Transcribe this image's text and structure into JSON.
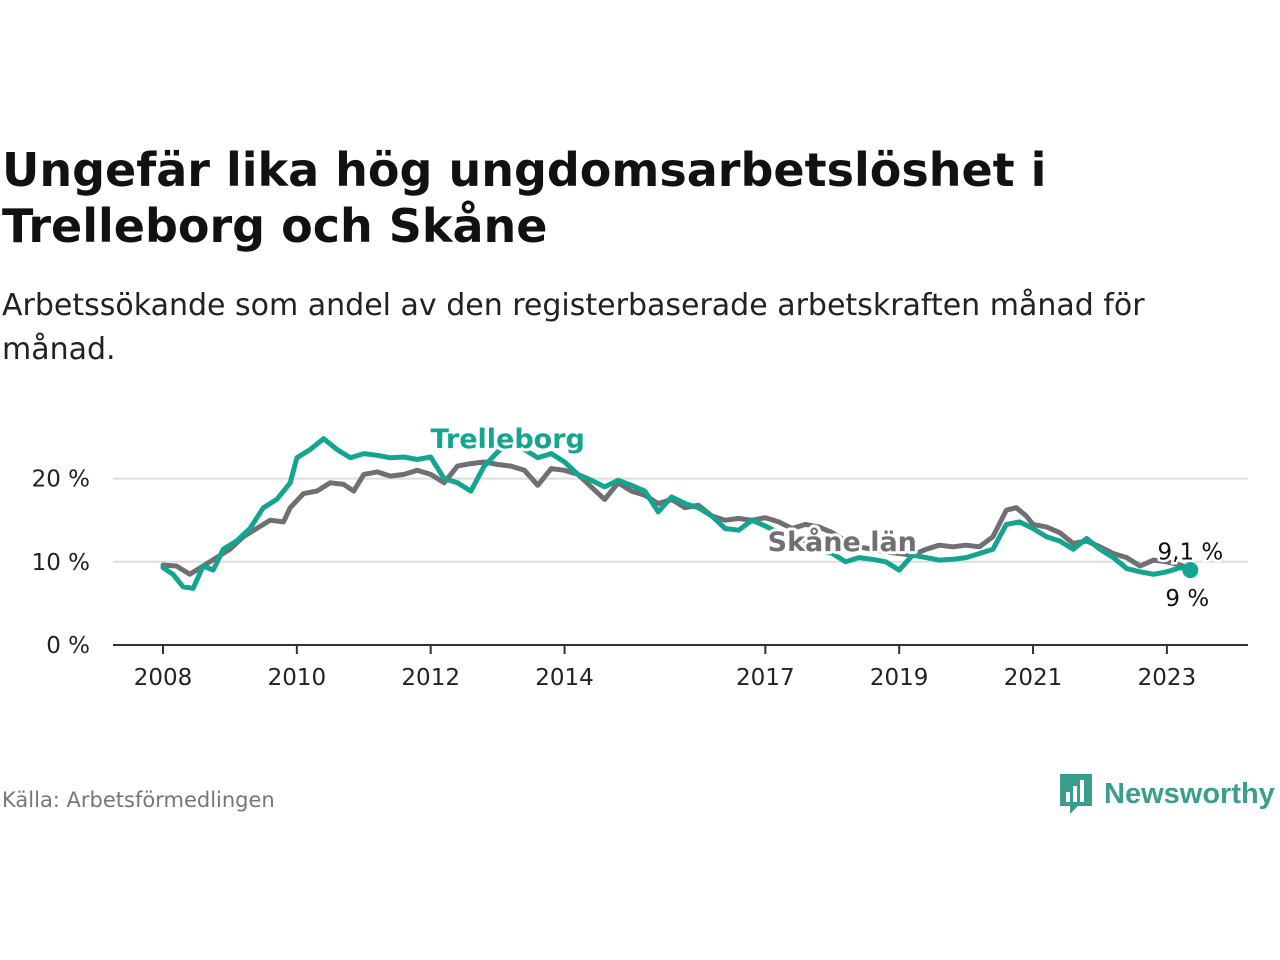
{
  "title": "Ungefär lika hög ungdomsarbetslöshet i Trelleborg och Skåne",
  "subtitle": "Arbetssökande som andel av den registerbaserade arbetskraften månad för månad.",
  "source": "Källa: Arbetsförmedlingen",
  "brand": "Newsworthy",
  "colors": {
    "trelleborg": "#13a58f",
    "skane": "#6f6f74",
    "grid": "#dddddd",
    "axis": "#333333",
    "brand": "#3b9e8c"
  },
  "chart_data": {
    "type": "line",
    "title": "Ungefär lika hög ungdomsarbetslöshet i Trelleborg och Skåne",
    "xlabel": "",
    "ylabel": "",
    "xlim": [
      2008.0,
      2023.45
    ],
    "ylim": [
      0,
      25
    ],
    "y_ticks": [
      {
        "value": 0,
        "label": "0 %"
      },
      {
        "value": 10,
        "label": "10 %"
      },
      {
        "value": 20,
        "label": "20 %"
      }
    ],
    "x_ticks": [
      {
        "value": 2008,
        "label": "2008"
      },
      {
        "value": 2010,
        "label": "2010"
      },
      {
        "value": 2012,
        "label": "2012"
      },
      {
        "value": 2014,
        "label": "2014"
      },
      {
        "value": 2017,
        "label": "2017"
      },
      {
        "value": 2019,
        "label": "2019"
      },
      {
        "value": 2021,
        "label": "2021"
      },
      {
        "value": 2023,
        "label": "2023"
      }
    ],
    "series": [
      {
        "name": "Skåne län",
        "label": "Skåne län",
        "end_label": "9,1 %",
        "color": "#6f6f74",
        "points": [
          [
            2008.0,
            9.6
          ],
          [
            2008.2,
            9.5
          ],
          [
            2008.4,
            8.5
          ],
          [
            2008.6,
            9.5
          ],
          [
            2008.8,
            10.5
          ],
          [
            2009.0,
            11.5
          ],
          [
            2009.2,
            13.0
          ],
          [
            2009.4,
            14.0
          ],
          [
            2009.6,
            15.0
          ],
          [
            2009.8,
            14.8
          ],
          [
            2009.9,
            16.5
          ],
          [
            2010.1,
            18.2
          ],
          [
            2010.3,
            18.5
          ],
          [
            2010.5,
            19.5
          ],
          [
            2010.7,
            19.3
          ],
          [
            2010.85,
            18.5
          ],
          [
            2011.0,
            20.5
          ],
          [
            2011.2,
            20.8
          ],
          [
            2011.4,
            20.3
          ],
          [
            2011.6,
            20.5
          ],
          [
            2011.8,
            21.0
          ],
          [
            2012.0,
            20.5
          ],
          [
            2012.2,
            19.5
          ],
          [
            2012.4,
            21.5
          ],
          [
            2012.6,
            21.8
          ],
          [
            2012.8,
            22.0
          ],
          [
            2013.0,
            21.7
          ],
          [
            2013.2,
            21.5
          ],
          [
            2013.4,
            21.0
          ],
          [
            2013.6,
            19.2
          ],
          [
            2013.8,
            21.2
          ],
          [
            2014.0,
            21.0
          ],
          [
            2014.2,
            20.5
          ],
          [
            2014.4,
            19.0
          ],
          [
            2014.6,
            17.5
          ],
          [
            2014.8,
            19.5
          ],
          [
            2015.0,
            18.5
          ],
          [
            2015.2,
            18.0
          ],
          [
            2015.4,
            17.0
          ],
          [
            2015.6,
            17.5
          ],
          [
            2015.8,
            16.5
          ],
          [
            2016.0,
            16.8
          ],
          [
            2016.2,
            15.5
          ],
          [
            2016.4,
            15.0
          ],
          [
            2016.6,
            15.2
          ],
          [
            2016.8,
            15.0
          ],
          [
            2017.0,
            15.3
          ],
          [
            2017.2,
            14.8
          ],
          [
            2017.4,
            14.0
          ],
          [
            2017.6,
            14.5
          ],
          [
            2017.8,
            14.2
          ],
          [
            2018.0,
            13.5
          ],
          [
            2018.2,
            12.5
          ],
          [
            2018.4,
            11.8
          ],
          [
            2018.6,
            11.5
          ],
          [
            2018.8,
            11.2
          ],
          [
            2019.0,
            11.0
          ],
          [
            2019.2,
            10.8
          ],
          [
            2019.4,
            11.5
          ],
          [
            2019.6,
            12.0
          ],
          [
            2019.8,
            11.8
          ],
          [
            2020.0,
            12.0
          ],
          [
            2020.2,
            11.8
          ],
          [
            2020.4,
            13.0
          ],
          [
            2020.6,
            16.2
          ],
          [
            2020.75,
            16.5
          ],
          [
            2020.9,
            15.5
          ],
          [
            2021.0,
            14.5
          ],
          [
            2021.2,
            14.2
          ],
          [
            2021.4,
            13.5
          ],
          [
            2021.6,
            12.2
          ],
          [
            2021.8,
            12.5
          ],
          [
            2022.0,
            11.8
          ],
          [
            2022.2,
            11.0
          ],
          [
            2022.4,
            10.5
          ],
          [
            2022.6,
            9.5
          ],
          [
            2022.8,
            10.2
          ],
          [
            2023.0,
            10.0
          ],
          [
            2023.2,
            9.6
          ],
          [
            2023.35,
            9.1
          ]
        ]
      },
      {
        "name": "Trelleborg",
        "label": "Trelleborg",
        "end_label": "9 %",
        "color": "#13a58f",
        "points": [
          [
            2008.0,
            9.3
          ],
          [
            2008.15,
            8.5
          ],
          [
            2008.3,
            7.0
          ],
          [
            2008.45,
            6.8
          ],
          [
            2008.6,
            9.5
          ],
          [
            2008.75,
            9.0
          ],
          [
            2008.9,
            11.5
          ],
          [
            2009.1,
            12.5
          ],
          [
            2009.3,
            14.0
          ],
          [
            2009.5,
            16.5
          ],
          [
            2009.7,
            17.5
          ],
          [
            2009.9,
            19.5
          ],
          [
            2010.0,
            22.5
          ],
          [
            2010.2,
            23.5
          ],
          [
            2010.4,
            24.8
          ],
          [
            2010.6,
            23.5
          ],
          [
            2010.8,
            22.5
          ],
          [
            2011.0,
            23.0
          ],
          [
            2011.2,
            22.8
          ],
          [
            2011.4,
            22.5
          ],
          [
            2011.6,
            22.6
          ],
          [
            2011.8,
            22.3
          ],
          [
            2012.0,
            22.6
          ],
          [
            2012.2,
            20.0
          ],
          [
            2012.4,
            19.5
          ],
          [
            2012.6,
            18.5
          ],
          [
            2012.8,
            21.5
          ],
          [
            2013.0,
            23.2
          ],
          [
            2013.2,
            24.5
          ],
          [
            2013.4,
            23.5
          ],
          [
            2013.6,
            22.5
          ],
          [
            2013.8,
            23.0
          ],
          [
            2014.0,
            22.0
          ],
          [
            2014.2,
            20.5
          ],
          [
            2014.4,
            19.8
          ],
          [
            2014.6,
            19.0
          ],
          [
            2014.8,
            19.8
          ],
          [
            2015.0,
            19.2
          ],
          [
            2015.2,
            18.5
          ],
          [
            2015.4,
            16.0
          ],
          [
            2015.6,
            17.8
          ],
          [
            2015.8,
            17.0
          ],
          [
            2016.0,
            16.5
          ],
          [
            2016.2,
            15.5
          ],
          [
            2016.4,
            14.0
          ],
          [
            2016.6,
            13.8
          ],
          [
            2016.8,
            15.0
          ],
          [
            2017.0,
            14.3
          ],
          [
            2017.2,
            13.5
          ],
          [
            2017.4,
            13.0
          ],
          [
            2017.6,
            12.5
          ],
          [
            2017.8,
            11.5
          ],
          [
            2018.0,
            11.0
          ],
          [
            2018.2,
            10.0
          ],
          [
            2018.4,
            10.5
          ],
          [
            2018.6,
            10.3
          ],
          [
            2018.8,
            10.0
          ],
          [
            2019.0,
            9.0
          ],
          [
            2019.2,
            10.8
          ],
          [
            2019.4,
            10.5
          ],
          [
            2019.6,
            10.2
          ],
          [
            2019.8,
            10.3
          ],
          [
            2020.0,
            10.5
          ],
          [
            2020.2,
            11.0
          ],
          [
            2020.4,
            11.5
          ],
          [
            2020.6,
            14.5
          ],
          [
            2020.8,
            14.8
          ],
          [
            2021.0,
            14.0
          ],
          [
            2021.2,
            13.0
          ],
          [
            2021.4,
            12.5
          ],
          [
            2021.6,
            11.5
          ],
          [
            2021.8,
            12.8
          ],
          [
            2022.0,
            11.5
          ],
          [
            2022.2,
            10.5
          ],
          [
            2022.4,
            9.2
          ],
          [
            2022.6,
            8.8
          ],
          [
            2022.8,
            8.5
          ],
          [
            2023.0,
            8.8
          ],
          [
            2023.2,
            9.3
          ],
          [
            2023.35,
            9.0
          ]
        ]
      }
    ],
    "annotations": [
      {
        "series": "Trelleborg",
        "text": "Trelleborg",
        "x": 2013.15,
        "y": 24.9
      },
      {
        "series": "Skåne län",
        "text": "Skåne län",
        "x": 2018.15,
        "y": 12.5
      }
    ],
    "grid": true,
    "legend": "inline labels"
  }
}
